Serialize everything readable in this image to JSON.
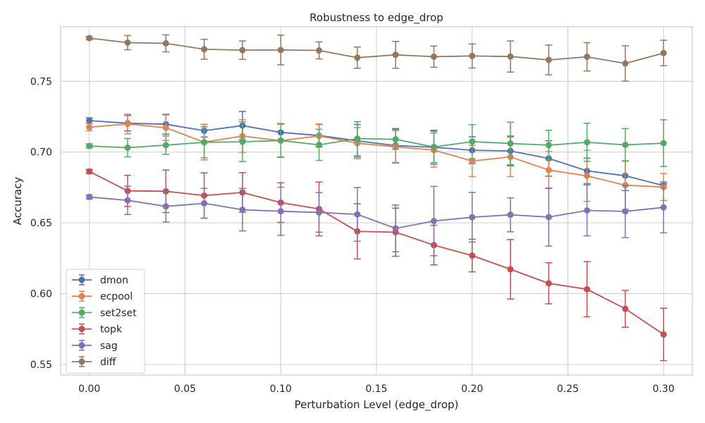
{
  "chart_data": {
    "type": "line",
    "title": "Robustness to edge_drop",
    "xlabel": "Perturbation Level (edge_drop)",
    "ylabel": "Accuracy",
    "xlim": [
      -0.015,
      0.315
    ],
    "ylim": [
      0.5425,
      0.7885
    ],
    "xticks": [
      0.0,
      0.05,
      0.1,
      0.15,
      0.2,
      0.25,
      0.3
    ],
    "xtick_labels": [
      "0.00",
      "0.05",
      "0.10",
      "0.15",
      "0.20",
      "0.25",
      "0.30"
    ],
    "yticks": [
      0.55,
      0.6,
      0.65,
      0.7,
      0.75
    ],
    "ytick_labels": [
      "0.55",
      "0.60",
      "0.65",
      "0.70",
      "0.75"
    ],
    "grid": true,
    "legend_position": "lower-left",
    "x": [
      0.0,
      0.02,
      0.04,
      0.06,
      0.08,
      0.1,
      0.12,
      0.14,
      0.16,
      0.18,
      0.2,
      0.22,
      0.24,
      0.26,
      0.28,
      0.3
    ],
    "series": [
      {
        "name": "dmon",
        "color": "#4c72b0",
        "values": [
          0.7222,
          0.7204,
          0.7197,
          0.7151,
          0.7187,
          0.7139,
          0.7117,
          0.708,
          0.7046,
          0.7034,
          0.7013,
          0.7008,
          0.6955,
          0.6867,
          0.6833,
          0.6763
        ],
        "errors": [
          0.002,
          0.0055,
          0.007,
          0.0045,
          0.01,
          0.006,
          0.008,
          0.0115,
          0.012,
          0.012,
          0.0095,
          0.0105,
          0.0125,
          0.009,
          0.0105,
          0.0015
        ]
      },
      {
        "name": "ecpool",
        "color": "#dd8452",
        "values": [
          0.7176,
          0.7199,
          0.7172,
          0.707,
          0.7113,
          0.7081,
          0.7114,
          0.7063,
          0.7037,
          0.7014,
          0.6937,
          0.6966,
          0.6873,
          0.6832,
          0.6766,
          0.6753
        ],
        "errors": [
          0.0025,
          0.007,
          0.009,
          0.0125,
          0.0115,
          0.0115,
          0.008,
          0.011,
          0.0115,
          0.012,
          0.011,
          0.014,
          0.013,
          0.018,
          0.017,
          0.0095
        ]
      },
      {
        "name": "set2set",
        "color": "#55a868",
        "values": [
          0.7043,
          0.7031,
          0.7049,
          0.7069,
          0.7073,
          0.7082,
          0.7051,
          0.7095,
          0.709,
          0.7036,
          0.7074,
          0.7061,
          0.7049,
          0.7069,
          0.7051,
          0.7063
        ],
        "errors": [
          0.0015,
          0.0065,
          0.0065,
          0.011,
          0.014,
          0.012,
          0.011,
          0.012,
          0.007,
          0.011,
          0.012,
          0.015,
          0.0105,
          0.0135,
          0.0115,
          0.0165
        ]
      },
      {
        "name": "topk",
        "color": "#c44e52",
        "values": [
          0.6863,
          0.6726,
          0.6723,
          0.6693,
          0.6715,
          0.6643,
          0.6598,
          0.644,
          0.6434,
          0.6343,
          0.6269,
          0.6172,
          0.6073,
          0.6031,
          0.5893,
          0.5712
        ],
        "errors": [
          0.0015,
          0.011,
          0.015,
          0.016,
          0.014,
          0.014,
          0.019,
          0.0195,
          0.017,
          0.014,
          0.0115,
          0.021,
          0.0145,
          0.0195,
          0.013,
          0.0185
        ]
      },
      {
        "name": "sag",
        "color": "#8172b3",
        "values": [
          0.6683,
          0.6659,
          0.6616,
          0.6638,
          0.6593,
          0.6582,
          0.6574,
          0.656,
          0.6461,
          0.6513,
          0.654,
          0.6557,
          0.6541,
          0.6588,
          0.6581,
          0.6609
        ],
        "errors": [
          0.0015,
          0.01,
          0.011,
          0.0105,
          0.015,
          0.017,
          0.014,
          0.019,
          0.0165,
          0.0245,
          0.0175,
          0.012,
          0.0205,
          0.018,
          0.0185,
          0.018
        ]
      },
      {
        "name": "diff",
        "color": "#937860",
        "values": [
          0.7805,
          0.7773,
          0.7768,
          0.7726,
          0.772,
          0.7721,
          0.7718,
          0.7667,
          0.7687,
          0.7674,
          0.7679,
          0.7675,
          0.7651,
          0.7673,
          0.7626,
          0.77
        ],
        "errors": [
          0.001,
          0.005,
          0.006,
          0.007,
          0.0065,
          0.0105,
          0.006,
          0.0075,
          0.0095,
          0.0075,
          0.0085,
          0.011,
          0.0105,
          0.01,
          0.0125,
          0.009
        ]
      }
    ]
  }
}
